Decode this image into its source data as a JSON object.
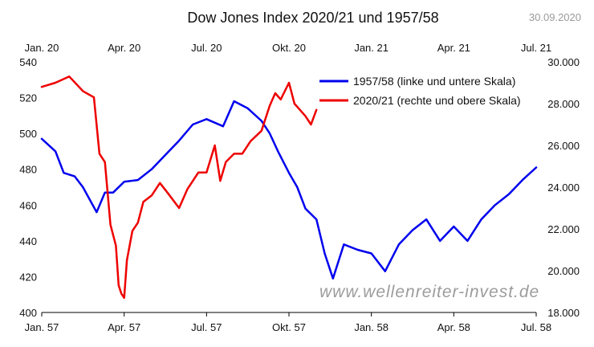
{
  "header": {
    "title": "Dow Jones Index 2020/21 und 1957/58",
    "date": "30.09.2020"
  },
  "watermark": "www.wellenreiter-invest.de",
  "chart_data": {
    "type": "line",
    "title": "Dow Jones Index 2020/21 und 1957/58",
    "grid": false,
    "legend_position": "top-right",
    "axes": {
      "x_bottom": {
        "ticks": [
          "Jan. 57",
          "Apr. 57",
          "Jul. 57",
          "Okt. 57",
          "Jan. 58",
          "Apr. 58",
          "Jul. 58"
        ],
        "range": [
          0,
          18
        ]
      },
      "x_top": {
        "ticks": [
          "Jan. 20",
          "Apr. 20",
          "Jul. 20",
          "Okt. 20",
          "Jan. 21",
          "Apr. 21",
          "Jul. 21"
        ],
        "range": [
          0,
          18
        ]
      },
      "y_left": {
        "ticks": [
          "540",
          "520",
          "500",
          "480",
          "460",
          "440",
          "420",
          "400"
        ],
        "range": [
          400,
          540
        ]
      },
      "y_right": {
        "ticks": [
          "30.000",
          "28.000",
          "26.000",
          "24.000",
          "22.000",
          "20.000",
          "18.000"
        ],
        "range": [
          18000,
          30000
        ]
      }
    },
    "series": [
      {
        "name": "1957/58 (linke und untere Skala)",
        "color": "#0000ee",
        "axis": "left-bottom",
        "x": [
          0,
          0.5,
          0.8,
          1.2,
          1.5,
          2.0,
          2.3,
          2.6,
          3.0,
          3.5,
          4.0,
          4.5,
          5.0,
          5.5,
          6.0,
          6.6,
          7.0,
          7.5,
          8.0,
          8.3,
          8.6,
          9.0,
          9.3,
          9.6,
          10.0,
          10.3,
          10.6,
          11.0,
          11.5,
          12.0,
          12.5,
          13.0,
          13.5,
          14.0,
          14.5,
          15.0,
          15.5,
          16.0,
          16.5,
          17.0,
          17.5,
          18.0
        ],
        "y": [
          497,
          490,
          478,
          476,
          470,
          456,
          467,
          467,
          473,
          474,
          480,
          488,
          496,
          505,
          508,
          504,
          518,
          514,
          507,
          500,
          490,
          478,
          470,
          458,
          452,
          433,
          419,
          438,
          435,
          433,
          423,
          438,
          446,
          452,
          440,
          448,
          440,
          452,
          460,
          466,
          474,
          481
        ]
      },
      {
        "name": "2020/21 (rechte und obere Skala)",
        "color": "#ee0000",
        "axis": "right-top",
        "x": [
          0,
          0.5,
          1.0,
          1.5,
          1.9,
          2.1,
          2.3,
          2.5,
          2.7,
          2.8,
          2.9,
          3.0,
          3.1,
          3.3,
          3.5,
          3.7,
          4.0,
          4.3,
          4.6,
          5.0,
          5.3,
          5.7,
          6.0,
          6.3,
          6.5,
          6.7,
          7.0,
          7.3,
          7.6,
          8.0,
          8.3,
          8.5,
          8.7,
          9.0,
          9.2,
          9.4,
          9.6,
          9.8,
          10.0
        ],
        "y": [
          28800,
          29000,
          29300,
          28600,
          28300,
          25600,
          25200,
          22200,
          21200,
          19300,
          18900,
          18700,
          20500,
          21900,
          22300,
          23300,
          23600,
          24200,
          23700,
          23000,
          23900,
          24700,
          24700,
          26000,
          24300,
          25200,
          25600,
          25600,
          26200,
          26700,
          27900,
          28500,
          28200,
          29000,
          28000,
          27700,
          27400,
          27000,
          27700
        ]
      }
    ]
  }
}
